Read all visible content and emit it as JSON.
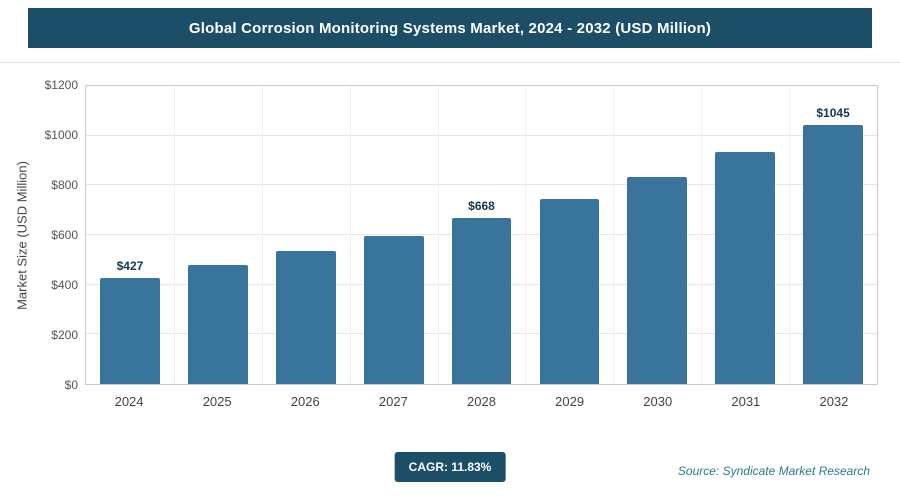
{
  "header": {
    "title": "Global Corrosion Monitoring Systems Market, 2024 - 2032 (USD Million)"
  },
  "colors": {
    "header_bg": "#1c4e68",
    "bar": "#39749c",
    "badge_bg": "#1c4e68",
    "label_text": "#17344d"
  },
  "chart_data": {
    "type": "bar",
    "title": "Global Corrosion Monitoring Systems Market, 2024 - 2032 (USD Million)",
    "categories": [
      "2024",
      "2025",
      "2026",
      "2027",
      "2028",
      "2029",
      "2030",
      "2031",
      "2032"
    ],
    "values": [
      427,
      478,
      534,
      597,
      668,
      747,
      835,
      934,
      1045
    ],
    "point_labels": [
      "$427",
      "",
      "",
      "",
      "$668",
      "",
      "",
      "",
      "$1045"
    ],
    "xlabel": "",
    "ylabel": "Market Size (USD Million)",
    "ylim": [
      0,
      1200
    ],
    "y_ticks": [
      "$0",
      "$200",
      "$400",
      "$600",
      "$800",
      "$1000",
      "$1200"
    ],
    "grid": true,
    "legend": "none"
  },
  "footer": {
    "cagr_label": "CAGR: 11.83%",
    "source": "Source: Syndicate Market Research"
  }
}
